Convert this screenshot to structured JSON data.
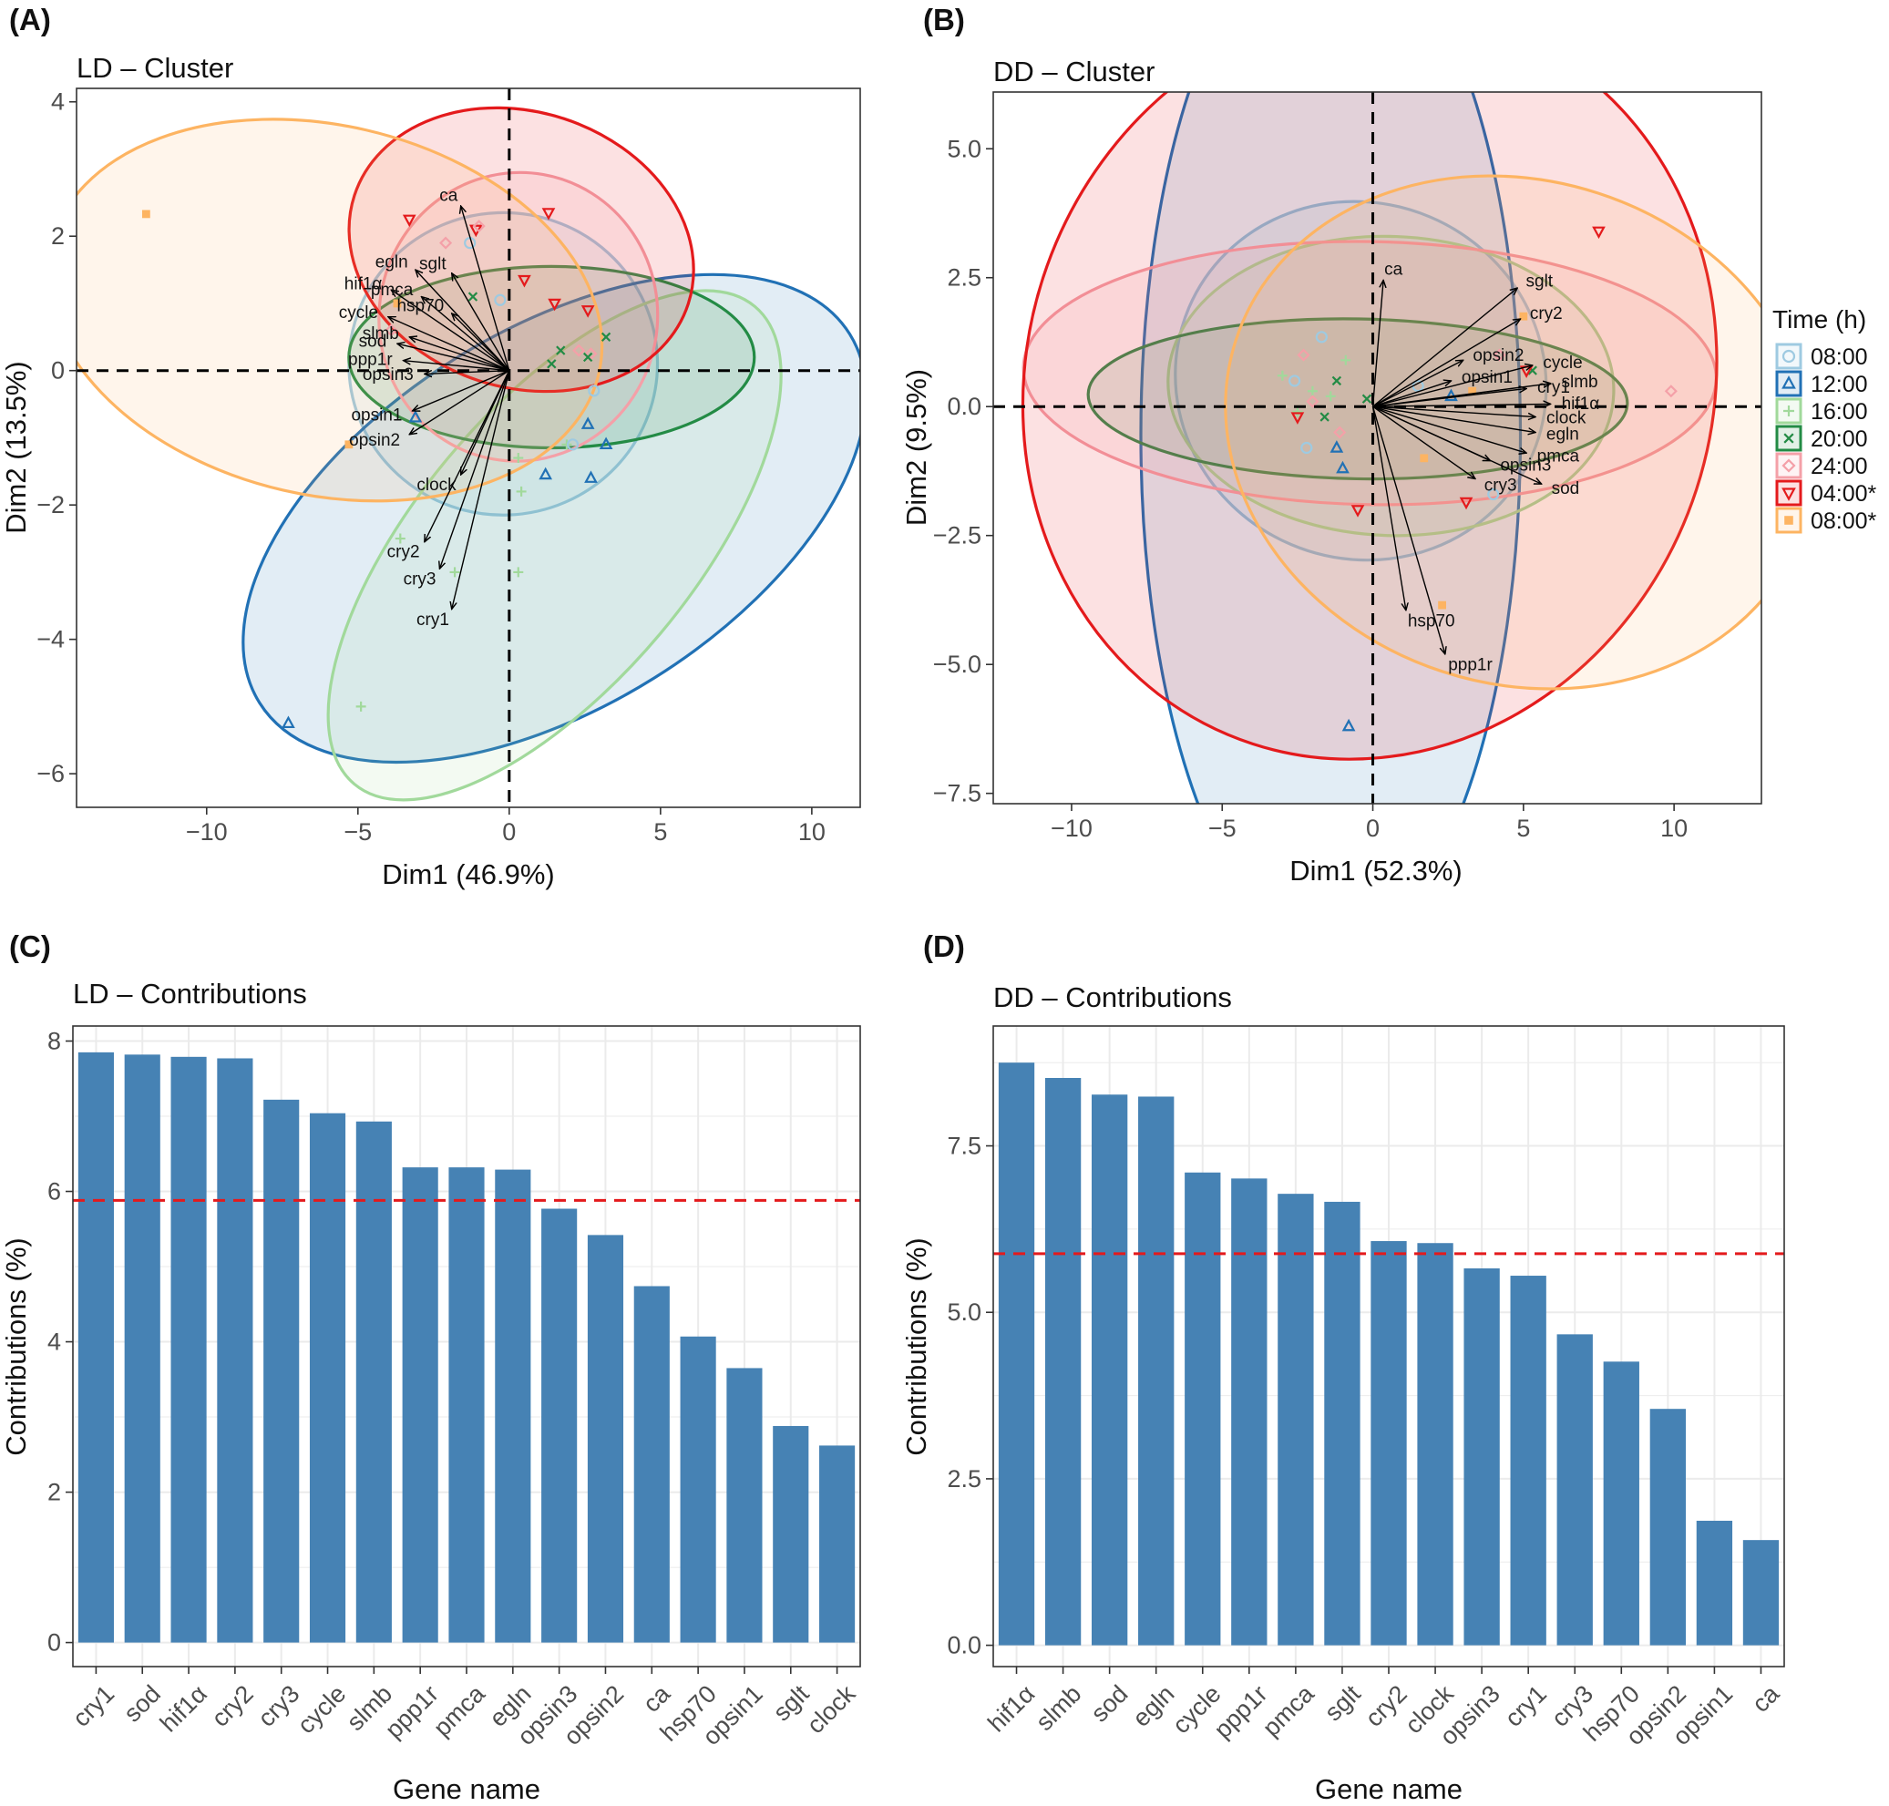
{
  "colors": {
    "bar": "#4682B4",
    "refline": "#E41A1C",
    "arrow": "#000000",
    "grid": "#EBEBEB",
    "timepoints": [
      "#9ECAE1",
      "#2171B5",
      "#A1D99B",
      "#238B45",
      "#F4A0A8",
      "#E41A1C",
      "#FDB462"
    ]
  },
  "chart_data": [
    {
      "panel": "(A)",
      "title": "LD – Cluster",
      "type": "scatter",
      "xlabel": "Dim1 (46.9%)",
      "ylabel": "Dim2 (13.5%)",
      "xlim": [
        -14.3,
        11.6
      ],
      "ylim": [
        -6.5,
        4.2
      ],
      "xticks": [
        -10,
        -5,
        0,
        5,
        10
      ],
      "yticks": [
        -6,
        -4,
        -2,
        0,
        2,
        4
      ],
      "xtick_labels": [
        "−10",
        "−5",
        "0",
        "5",
        "10"
      ],
      "ytick_labels": [
        "−6",
        "−4",
        "−2",
        "0",
        "2",
        "4"
      ],
      "ellipses": [
        {
          "group": "08:00",
          "cx": -0.2,
          "cy": 0.1,
          "rx": 5.1,
          "ry": 2.25,
          "angle": 2
        },
        {
          "group": "12:00",
          "cx": 1.5,
          "cy": -2.2,
          "rx": 11.5,
          "ry": 2.8,
          "angle": 32
        },
        {
          "group": "16:00",
          "cx": 1.5,
          "cy": -2.6,
          "rx": 10.3,
          "ry": 2.05,
          "angle": 50
        },
        {
          "group": "20:00",
          "cx": 1.4,
          "cy": 0.2,
          "rx": 6.7,
          "ry": 1.35,
          "angle": 0
        },
        {
          "group": "24:00",
          "cx": 0.3,
          "cy": 0.8,
          "rx": 4.6,
          "ry": 2.15,
          "angle": -10
        },
        {
          "group": "04:00*",
          "cx": 0.4,
          "cy": 1.8,
          "rx": 5.8,
          "ry": 2.05,
          "angle": -18
        },
        {
          "group": "08:00*",
          "cx": -6.1,
          "cy": 0.9,
          "rx": 9.3,
          "ry": 2.75,
          "angle": -13
        }
      ],
      "points": [
        {
          "group": "08:00*",
          "x": -12.0,
          "y": 2.33
        },
        {
          "group": "08:00*",
          "x": -5.3,
          "y": -1.1
        },
        {
          "group": "08:00*",
          "x": -3.7,
          "y": 1.0
        },
        {
          "group": "04:00*",
          "x": -3.3,
          "y": 2.25
        },
        {
          "group": "04:00*",
          "x": 1.3,
          "y": 2.35
        },
        {
          "group": "04:00*",
          "x": 1.5,
          "y": 1.0
        },
        {
          "group": "04:00*",
          "x": 2.6,
          "y": 0.9
        },
        {
          "group": "04:00*",
          "x": -1.1,
          "y": 2.1
        },
        {
          "group": "04:00*",
          "x": 0.5,
          "y": 1.35
        },
        {
          "group": "24:00",
          "x": -2.1,
          "y": 1.9
        },
        {
          "group": "24:00",
          "x": -1.0,
          "y": 2.15
        },
        {
          "group": "24:00",
          "x": 2.7,
          "y": 0.25
        },
        {
          "group": "24:00",
          "x": -3.9,
          "y": 0.6
        },
        {
          "group": "24:00",
          "x": 2.3,
          "y": 0.3
        },
        {
          "group": "20:00",
          "x": 1.7,
          "y": 0.3
        },
        {
          "group": "20:00",
          "x": 2.6,
          "y": 0.2
        },
        {
          "group": "20:00",
          "x": 3.2,
          "y": 0.5
        },
        {
          "group": "20:00",
          "x": -1.2,
          "y": 1.1
        },
        {
          "group": "20:00",
          "x": 1.4,
          "y": 0.1
        },
        {
          "group": "16:00",
          "x": -3.6,
          "y": -2.5
        },
        {
          "group": "16:00",
          "x": -1.8,
          "y": -3.0
        },
        {
          "group": "16:00",
          "x": -4.9,
          "y": -5.0
        },
        {
          "group": "16:00",
          "x": 0.3,
          "y": -3.0
        },
        {
          "group": "16:00",
          "x": 0.4,
          "y": -1.8
        },
        {
          "group": "16:00",
          "x": 1.9,
          "y": -1.1
        },
        {
          "group": "16:00",
          "x": 0.3,
          "y": -1.3
        },
        {
          "group": "12:00",
          "x": -7.3,
          "y": -5.25
        },
        {
          "group": "12:00",
          "x": 1.2,
          "y": -1.55
        },
        {
          "group": "12:00",
          "x": 2.6,
          "y": -0.8
        },
        {
          "group": "12:00",
          "x": 2.7,
          "y": -1.6
        },
        {
          "group": "12:00",
          "x": 3.2,
          "y": -1.1
        },
        {
          "group": "12:00",
          "x": -3.1,
          "y": -0.7
        },
        {
          "group": "08:00",
          "x": -0.3,
          "y": 1.05
        },
        {
          "group": "08:00",
          "x": 2.1,
          "y": -1.1
        },
        {
          "group": "08:00",
          "x": 2.8,
          "y": -0.3
        },
        {
          "group": "08:00",
          "x": -1.3,
          "y": 1.9
        }
      ],
      "arrows": [
        {
          "label": "ca",
          "x": -1.6,
          "y": 2.45
        },
        {
          "label": "egln",
          "x": -3.1,
          "y": 1.5
        },
        {
          "label": "sglt",
          "x": -1.9,
          "y": 1.45
        },
        {
          "label": "hif1α",
          "x": -3.9,
          "y": 1.2
        },
        {
          "label": "pmca",
          "x": -2.9,
          "y": 1.1
        },
        {
          "label": "hsp70",
          "x": -1.9,
          "y": 0.85
        },
        {
          "label": "cycle",
          "x": -4.0,
          "y": 0.8
        },
        {
          "label": "slmb",
          "x": -3.3,
          "y": 0.5
        },
        {
          "label": "sod",
          "x": -3.7,
          "y": 0.4
        },
        {
          "label": "ppp1r",
          "x": -3.5,
          "y": 0.15
        },
        {
          "label": "opsin3",
          "x": -2.8,
          "y": -0.05
        },
        {
          "label": "opsin1",
          "x": -3.2,
          "y": -0.6
        },
        {
          "label": "opsin2",
          "x": -3.3,
          "y": -0.95
        },
        {
          "label": "clock",
          "x": -1.6,
          "y": -1.55
        },
        {
          "label": "cry2",
          "x": -2.8,
          "y": -2.55
        },
        {
          "label": "cry3",
          "x": -2.3,
          "y": -2.95
        },
        {
          "label": "cry1",
          "x": -1.9,
          "y": -3.55
        }
      ]
    },
    {
      "panel": "(B)",
      "title": "DD – Cluster",
      "type": "scatter",
      "xlabel": "Dim1 (52.3%)",
      "ylabel": "Dim2 (9.5%)",
      "xlim": [
        -12.6,
        12.9
      ],
      "ylim": [
        -7.7,
        6.1
      ],
      "xticks": [
        -10,
        -5,
        0,
        5,
        10
      ],
      "yticks": [
        -7.5,
        -5.0,
        -2.5,
        0.0,
        2.5,
        5.0
      ],
      "xtick_labels": [
        "−10",
        "−5",
        "0",
        "5",
        "10"
      ],
      "ytick_labels": [
        "−7.5",
        "−5.0",
        "−2.5",
        "0.0",
        "2.5",
        "5.0"
      ],
      "ellipses": [
        {
          "group": "08:00",
          "cx": -0.4,
          "cy": 0.5,
          "rx": 6.2,
          "ry": 3.45,
          "angle": -23
        },
        {
          "group": "12:00",
          "cx": -1.4,
          "cy": -0.55,
          "rx": 6.3,
          "ry": 10.0,
          "angle": 0
        },
        {
          "group": "16:00",
          "cx": 0.6,
          "cy": 0.4,
          "rx": 7.4,
          "ry": 2.9,
          "angle": -2
        },
        {
          "group": "20:00",
          "cx": -0.5,
          "cy": 0.15,
          "rx": 8.95,
          "ry": 1.55,
          "angle": -1
        },
        {
          "group": "24:00",
          "cx": -0.1,
          "cy": 0.65,
          "rx": 11.5,
          "ry": 2.55,
          "angle": -1
        },
        {
          "group": "04:00*",
          "cx": -0.1,
          "cy": 0.45,
          "rx": 11.4,
          "ry": 7.35,
          "angle": -18
        },
        {
          "group": "08:00*",
          "cx": 4.9,
          "cy": -0.5,
          "rx": 8.35,
          "ry": 5.8,
          "angle": 72
        }
      ],
      "points": [
        {
          "group": "08:00",
          "x": -1.7,
          "y": 1.35
        },
        {
          "group": "08:00",
          "x": -2.6,
          "y": 0.5
        },
        {
          "group": "08:00",
          "x": 1.5,
          "y": 0.4
        },
        {
          "group": "08:00",
          "x": -2.2,
          "y": -0.8
        },
        {
          "group": "08:00",
          "x": 4.0,
          "y": -1.7
        },
        {
          "group": "12:00",
          "x": -0.8,
          "y": -6.2
        },
        {
          "group": "12:00",
          "x": -1.2,
          "y": -0.8
        },
        {
          "group": "12:00",
          "x": -1.0,
          "y": -1.2
        },
        {
          "group": "12:00",
          "x": 2.6,
          "y": 0.2
        },
        {
          "group": "16:00",
          "x": -3.0,
          "y": 0.6
        },
        {
          "group": "16:00",
          "x": -2.5,
          "y": -0.1
        },
        {
          "group": "16:00",
          "x": -1.4,
          "y": 0.2
        },
        {
          "group": "16:00",
          "x": -2.0,
          "y": 0.3
        },
        {
          "group": "16:00",
          "x": -0.9,
          "y": 0.9
        },
        {
          "group": "20:00",
          "x": -0.2,
          "y": 0.15
        },
        {
          "group": "20:00",
          "x": -1.6,
          "y": -0.2
        },
        {
          "group": "20:00",
          "x": -1.2,
          "y": 0.5
        },
        {
          "group": "20:00",
          "x": 5.3,
          "y": 0.7
        },
        {
          "group": "24:00",
          "x": 9.9,
          "y": 0.3
        },
        {
          "group": "24:00",
          "x": 4.2,
          "y": 1.0
        },
        {
          "group": "24:00",
          "x": -2.3,
          "y": 1.0
        },
        {
          "group": "24:00",
          "x": -2.0,
          "y": 0.1
        },
        {
          "group": "24:00",
          "x": -1.1,
          "y": -0.5
        },
        {
          "group": "04:00*",
          "x": 7.5,
          "y": 3.4
        },
        {
          "group": "04:00*",
          "x": 3.1,
          "y": -1.85
        },
        {
          "group": "04:00*",
          "x": 5.1,
          "y": 0.7
        },
        {
          "group": "04:00*",
          "x": -0.5,
          "y": -2.0
        },
        {
          "group": "04:00*",
          "x": -2.5,
          "y": -0.2
        },
        {
          "group": "08:00*",
          "x": 5.0,
          "y": 1.75
        },
        {
          "group": "08:00*",
          "x": 2.3,
          "y": -3.85
        },
        {
          "group": "08:00*",
          "x": 1.7,
          "y": -1.0
        },
        {
          "group": "08:00*",
          "x": 3.3,
          "y": 0.3
        }
      ],
      "arrows": [
        {
          "label": "ca",
          "x": 0.35,
          "y": 2.45
        },
        {
          "label": "sglt",
          "x": 4.8,
          "y": 2.3
        },
        {
          "label": "cry2",
          "x": 4.9,
          "y": 1.7
        },
        {
          "label": "opsin2",
          "x": 3.0,
          "y": 0.9
        },
        {
          "label": "opsin1",
          "x": 2.6,
          "y": 0.5
        },
        {
          "label": "cycle",
          "x": 5.3,
          "y": 0.8
        },
        {
          "label": "cry1",
          "x": 5.1,
          "y": 0.35
        },
        {
          "label": "slmb",
          "x": 5.9,
          "y": 0.45
        },
        {
          "label": "hif1α",
          "x": 5.9,
          "y": 0.05
        },
        {
          "label": "clock",
          "x": 5.4,
          "y": -0.2
        },
        {
          "label": "egln",
          "x": 5.4,
          "y": -0.5
        },
        {
          "label": "pmca",
          "x": 5.1,
          "y": -0.9
        },
        {
          "label": "opsin3",
          "x": 3.9,
          "y": -1.05
        },
        {
          "label": "sod",
          "x": 5.6,
          "y": -1.5
        },
        {
          "label": "cry3",
          "x": 3.4,
          "y": -1.4
        },
        {
          "label": "hsp70",
          "x": 1.1,
          "y": -3.95
        },
        {
          "label": "ppp1r",
          "x": 2.4,
          "y": -4.8
        }
      ]
    },
    {
      "panel": "(C)",
      "title": "LD – Contributions",
      "type": "bar",
      "xlabel": "Gene name",
      "ylabel": "Contributions (%)",
      "ylim": [
        -0.32,
        8.2
      ],
      "yticks": [
        0,
        2,
        4,
        6,
        8
      ],
      "ytick_labels": [
        "0",
        "2",
        "4",
        "6",
        "8"
      ],
      "reference_line": 5.88,
      "categories": [
        "cry1",
        "sod",
        "hif1α",
        "cry2",
        "cry3",
        "cycle",
        "slmb",
        "ppp1r",
        "pmca",
        "egln",
        "opsin3",
        "opsin2",
        "ca",
        "hsp70",
        "opsin1",
        "sglt",
        "clock"
      ],
      "values": [
        7.85,
        7.82,
        7.79,
        7.77,
        7.22,
        7.04,
        6.93,
        6.32,
        6.32,
        6.29,
        5.77,
        5.42,
        4.74,
        4.07,
        3.65,
        2.88,
        2.62
      ]
    },
    {
      "panel": "(D)",
      "title": "DD – Contributions",
      "type": "bar",
      "xlabel": "Gene name",
      "ylabel": "Contributions (%)",
      "ylim": [
        -0.32,
        9.3
      ],
      "yticks": [
        0.0,
        2.5,
        5.0,
        7.5
      ],
      "ytick_labels": [
        "0.0",
        "2.5",
        "5.0",
        "7.5"
      ],
      "reference_line": 5.88,
      "categories": [
        "hif1α",
        "slmb",
        "sod",
        "egln",
        "cycle",
        "ppp1r",
        "pmca",
        "sglt",
        "cry2",
        "clock",
        "opsin3",
        "cry1",
        "cry3",
        "hsp70",
        "opsin2",
        "opsin1",
        "ca"
      ],
      "values": [
        8.75,
        8.52,
        8.27,
        8.24,
        7.1,
        7.01,
        6.78,
        6.66,
        6.07,
        6.04,
        5.66,
        5.55,
        4.67,
        4.26,
        3.55,
        1.87,
        1.58
      ]
    }
  ],
  "legend": {
    "title": "Time (h)",
    "items": [
      "08:00",
      "12:00",
      "16:00",
      "20:00",
      "24:00",
      "04:00*",
      "08:00*"
    ]
  }
}
